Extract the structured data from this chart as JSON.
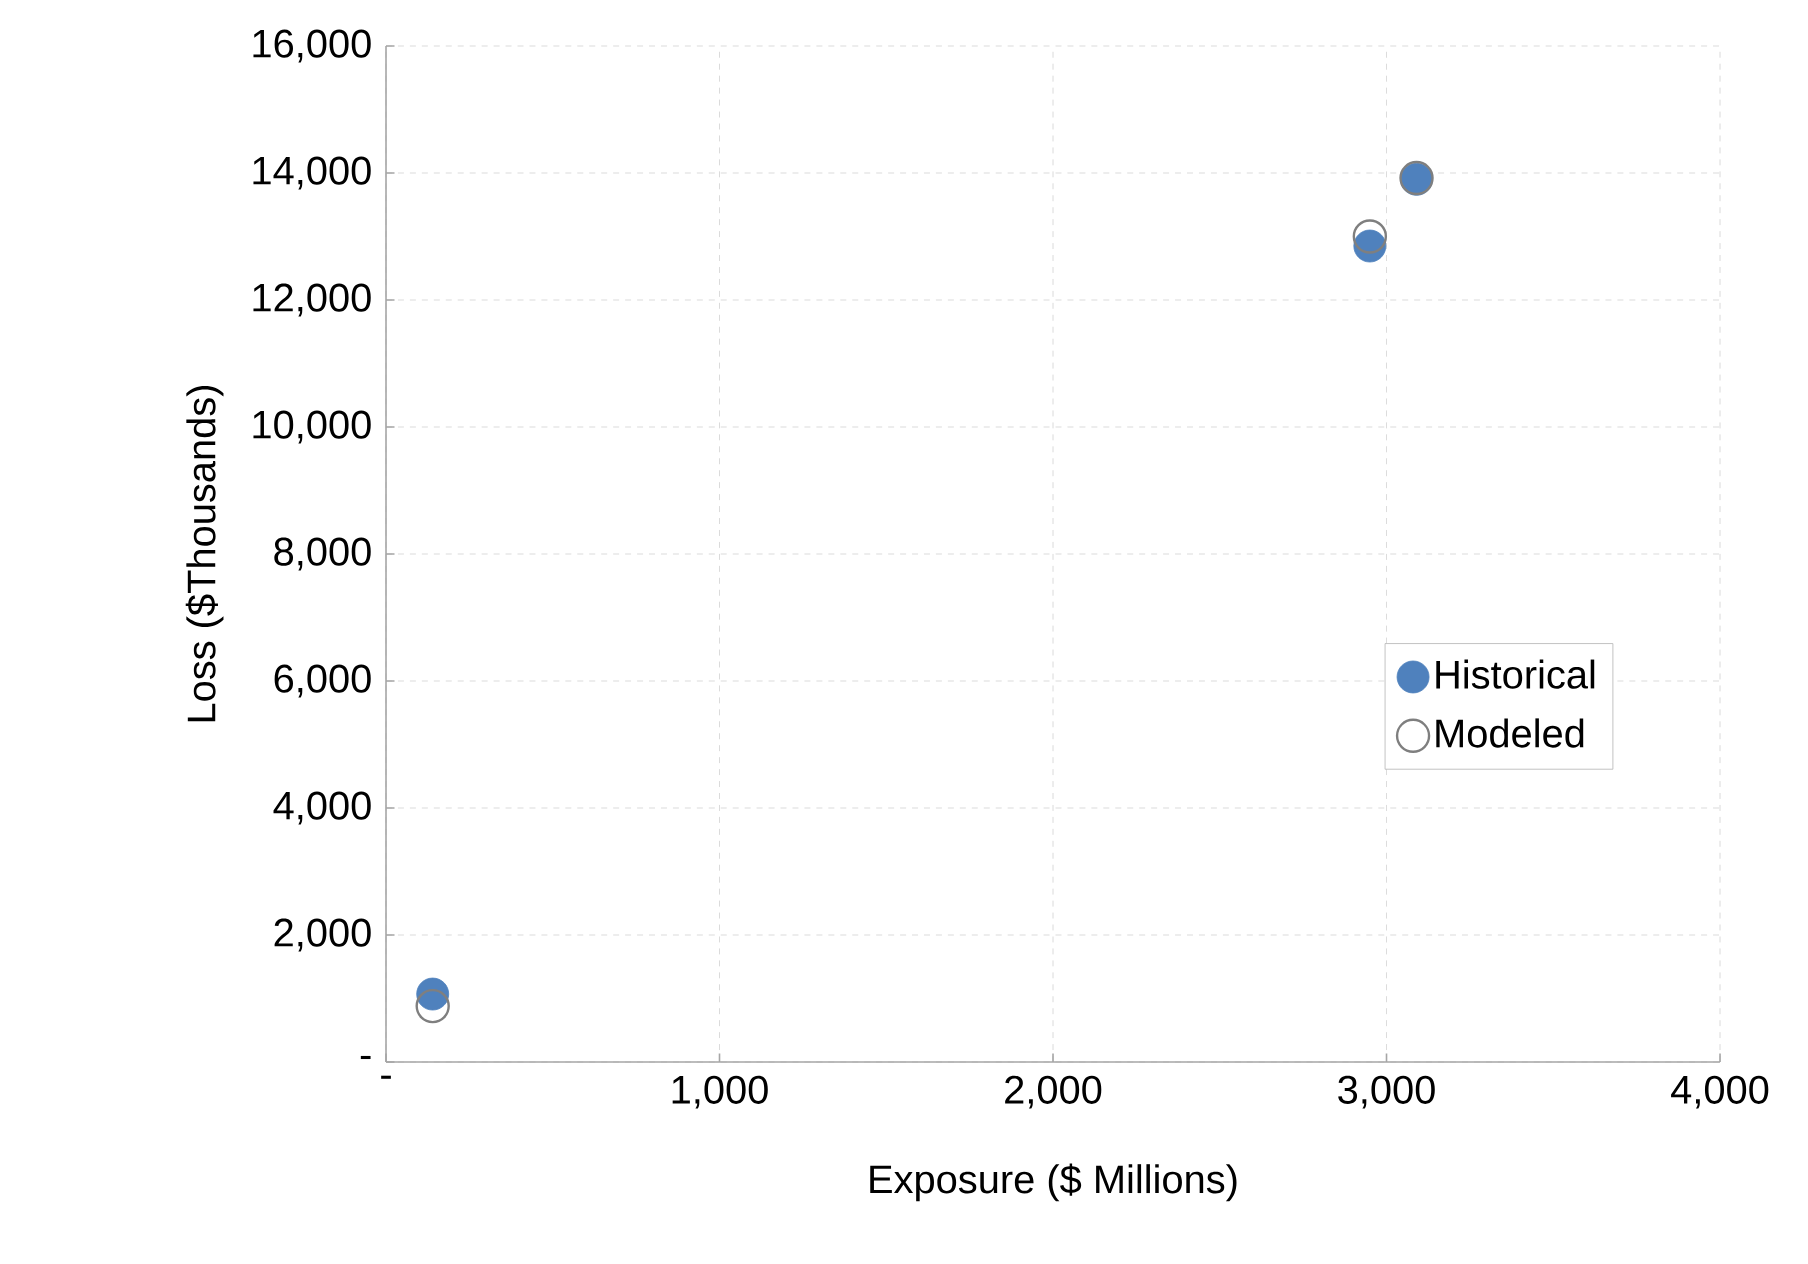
{
  "chart_data": {
    "type": "scatter",
    "xlabel": "Exposure ($ Millions)",
    "ylabel": "Loss ($Thousands)",
    "xlim": [
      0,
      4000
    ],
    "ylim": [
      0,
      16000
    ],
    "xticks": [
      {
        "value": 0,
        "label": "-"
      },
      {
        "value": 1000,
        "label": "1,000"
      },
      {
        "value": 2000,
        "label": "2,000"
      },
      {
        "value": 3000,
        "label": "3,000"
      },
      {
        "value": 4000,
        "label": "4,000"
      }
    ],
    "yticks": [
      {
        "value": 0,
        "label": "-"
      },
      {
        "value": 2000,
        "label": "2,000"
      },
      {
        "value": 4000,
        "label": "4,000"
      },
      {
        "value": 6000,
        "label": "6,000"
      },
      {
        "value": 8000,
        "label": "8,000"
      },
      {
        "value": 10000,
        "label": "10,000"
      },
      {
        "value": 12000,
        "label": "12,000"
      },
      {
        "value": 14000,
        "label": "14,000"
      },
      {
        "value": 16000,
        "label": "16,000"
      }
    ],
    "grid": true,
    "legend": "right",
    "marker": "circle",
    "series": [
      {
        "name": "Historical",
        "color": "#4f81bd",
        "x": [
          140,
          2950,
          3090
        ],
        "values": [
          1070,
          12850,
          13900
        ]
      },
      {
        "name": "Modeled",
        "color": "#7f7f7f",
        "x": [
          140,
          2950,
          3090
        ],
        "values": [
          880,
          13000,
          13920
        ]
      }
    ]
  }
}
